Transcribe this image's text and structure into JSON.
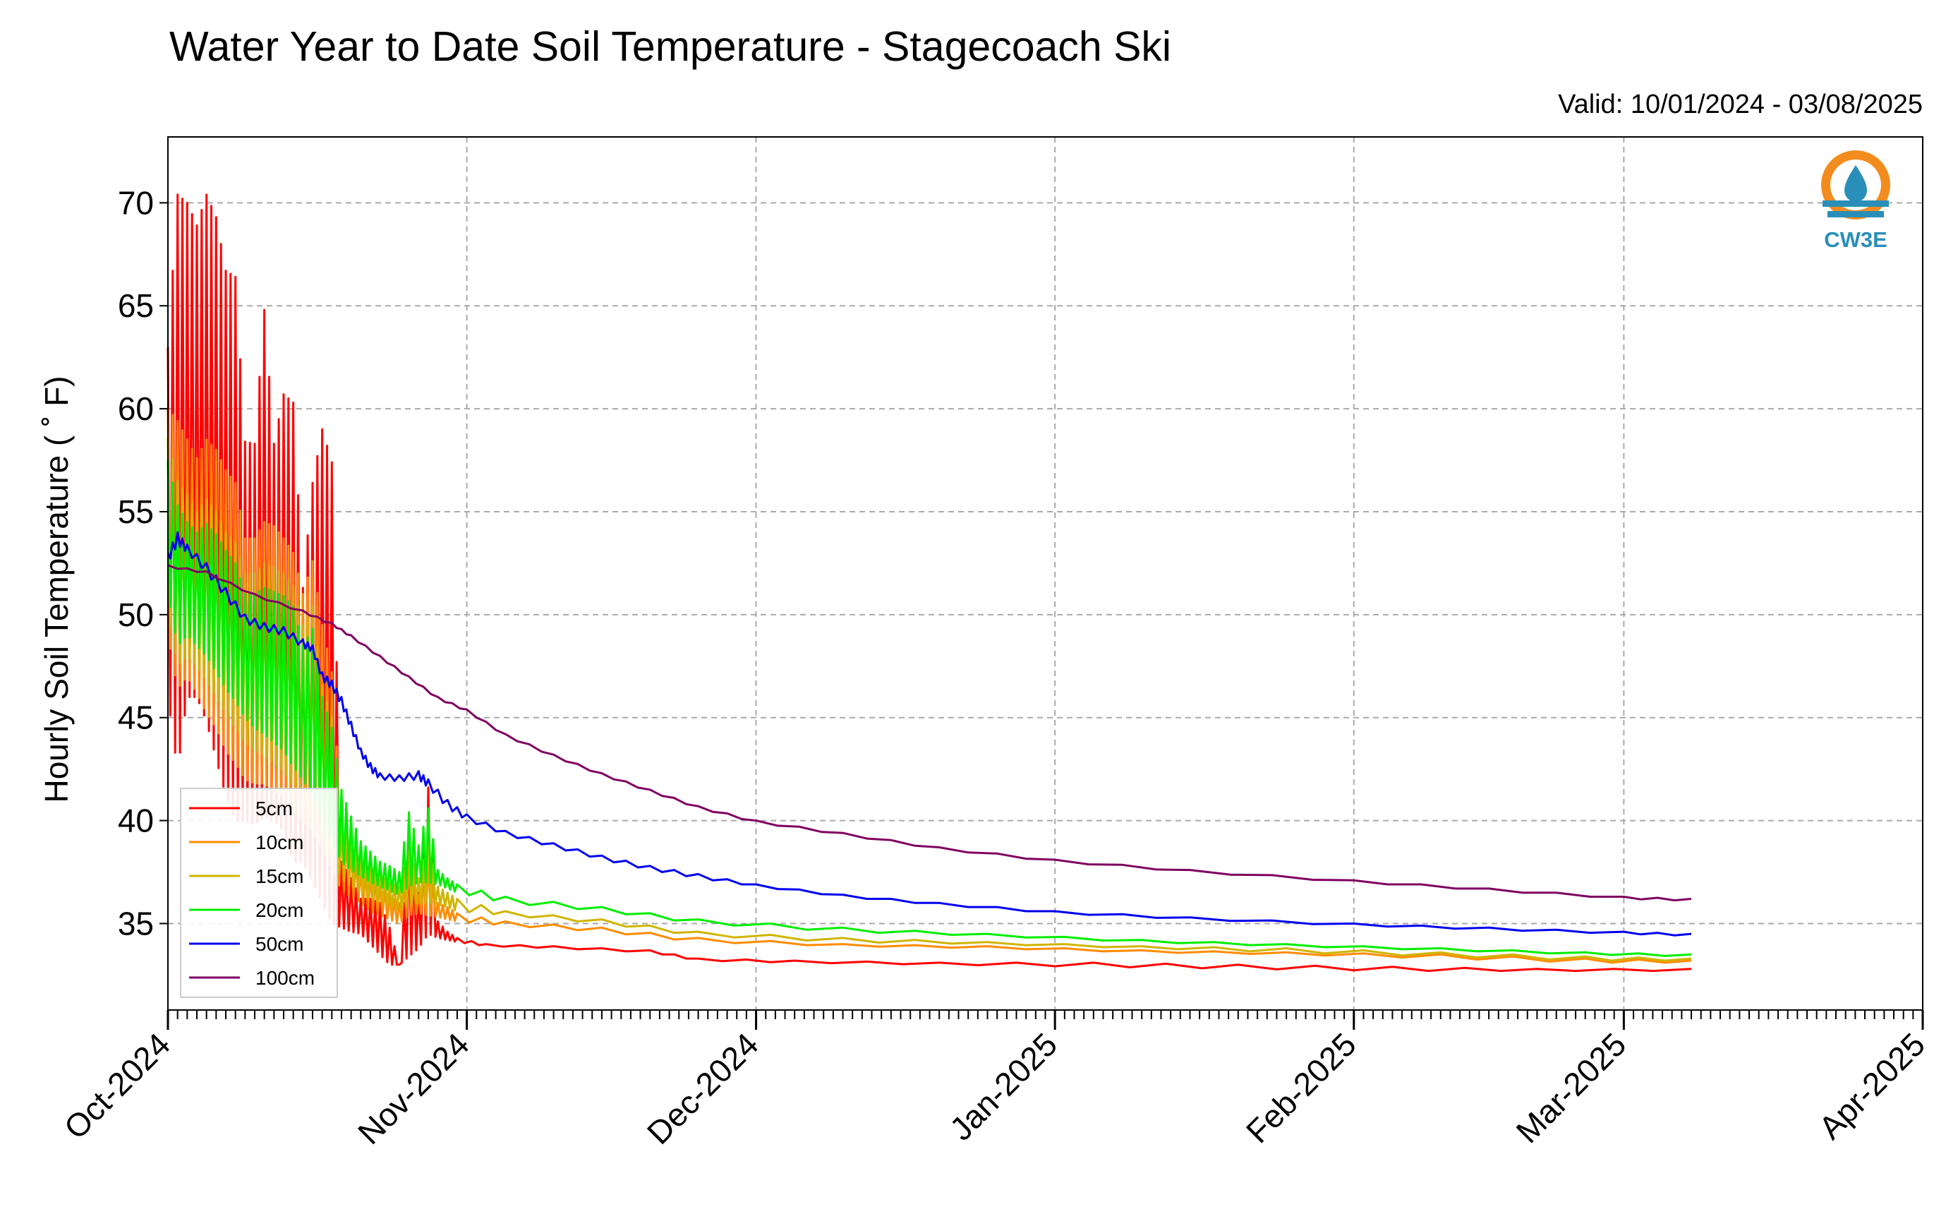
{
  "chart_data": {
    "type": "line",
    "title": "Water Year to Date Soil Temperature - Stagecoach Ski",
    "subtitle": "Valid: 10/01/2024 - 03/08/2025",
    "xlabel": "",
    "ylabel": "Hourly Soil Temperature ( ˚ F)",
    "xlim": [
      "2024-10-01",
      "2025-04-01"
    ],
    "ylim": [
      30.8,
      73.2
    ],
    "x_ticks": [
      "Oct-2024",
      "Nov-2024",
      "Dec-2024",
      "Jan-2025",
      "Feb-2025",
      "Mar-2025",
      "Apr-2025"
    ],
    "y_ticks": [
      35,
      40,
      45,
      50,
      55,
      60,
      65,
      70
    ],
    "grid": true,
    "legend_position": "lower-left",
    "logo_text": "CW3E",
    "series": [
      {
        "name": "5cm",
        "color": "#ff0000",
        "x": [
          "2024-10-01",
          "2024-10-02",
          "2024-10-03",
          "2024-10-04",
          "2024-10-05",
          "2024-10-06",
          "2024-10-07",
          "2024-10-08",
          "2024-10-09",
          "2024-10-10",
          "2024-10-11",
          "2024-10-12",
          "2024-10-13",
          "2024-10-14",
          "2024-10-15",
          "2024-10-16",
          "2024-10-17",
          "2024-10-18",
          "2024-10-19",
          "2024-10-20",
          "2024-10-21",
          "2024-10-22",
          "2024-10-23",
          "2024-10-24",
          "2024-10-25",
          "2024-10-26",
          "2024-10-27",
          "2024-10-28",
          "2024-10-29",
          "2024-10-30",
          "2024-10-31",
          "2024-11-03",
          "2024-11-10",
          "2024-11-20",
          "2024-11-25",
          "2024-12-05",
          "2024-12-20",
          "2025-01-05",
          "2025-01-20",
          "2025-02-05",
          "2025-02-20",
          "2025-03-08"
        ],
        "y": [
          63.0,
          70.4,
          70.0,
          68.9,
          70.4,
          69.3,
          66.7,
          66.4,
          58.4,
          58.3,
          64.8,
          58.3,
          60.7,
          60.3,
          51.3,
          56.4,
          59.0,
          57.4,
          38.0,
          37.2,
          36.2,
          36.2,
          36.0,
          34.8,
          33.0,
          39.0,
          36.5,
          41.6,
          35.1,
          34.6,
          34.3,
          34.0,
          33.9,
          33.7,
          33.3,
          33.2,
          33.1,
          33.1,
          33.0,
          32.9,
          32.8,
          32.8
        ],
        "y_low": [
          46.0,
          42.4,
          46.0,
          46.0,
          44.8,
          43.0,
          41.2,
          40.0,
          40.0,
          39.8,
          40.2,
          40.0,
          39.5,
          38.0,
          38.0,
          37.0,
          36.0,
          35.0,
          34.8,
          34.6,
          34.5,
          34.0,
          33.5,
          33.0,
          33.0,
          33.4,
          33.8,
          34.5,
          34.3,
          34.2,
          34.1,
          33.9,
          33.8,
          33.6,
          33.2,
          33.1,
          33.0,
          32.9,
          32.8,
          32.7,
          32.7,
          32.7
        ]
      },
      {
        "name": "10cm",
        "color": "#ff8c00",
        "x": [
          "2024-10-01",
          "2024-10-02",
          "2024-10-03",
          "2024-10-04",
          "2024-10-05",
          "2024-10-06",
          "2024-10-07",
          "2024-10-08",
          "2024-10-09",
          "2024-10-10",
          "2024-10-11",
          "2024-10-12",
          "2024-10-13",
          "2024-10-14",
          "2024-10-15",
          "2024-10-16",
          "2024-10-17",
          "2024-10-18",
          "2024-10-19",
          "2024-10-20",
          "2024-10-21",
          "2024-10-22",
          "2024-10-23",
          "2024-10-24",
          "2024-10-25",
          "2024-10-26",
          "2024-10-27",
          "2024-10-28",
          "2024-10-29",
          "2024-10-30",
          "2024-10-31",
          "2024-11-05",
          "2024-11-15",
          "2024-11-25",
          "2024-12-10",
          "2024-12-25",
          "2025-01-10",
          "2025-01-25",
          "2025-02-10",
          "2025-02-25",
          "2025-03-08"
        ],
        "y": [
          60.0,
          59.4,
          58.5,
          57.6,
          58.5,
          58.0,
          57.0,
          56.4,
          53.7,
          53.7,
          54.5,
          54.3,
          53.7,
          53.0,
          51.0,
          52.6,
          49.5,
          47.2,
          40.0,
          38.8,
          37.6,
          37.4,
          37.0,
          36.4,
          36.0,
          38.1,
          36.4,
          38.0,
          36.0,
          35.8,
          35.5,
          35.1,
          34.8,
          34.3,
          34.0,
          33.9,
          33.7,
          33.6,
          33.5,
          33.3,
          33.2
        ],
        "y_low": [
          49.0,
          46.4,
          47.0,
          46.2,
          45.2,
          44.5,
          43.4,
          42.8,
          42.0,
          41.8,
          41.8,
          41.4,
          41.2,
          40.4,
          40.0,
          39.4,
          38.6,
          37.6,
          36.6,
          36.3,
          36.0,
          35.6,
          35.4,
          35.2,
          35.0,
          35.4,
          35.5,
          35.4,
          35.3,
          35.2,
          35.1,
          34.9,
          34.6,
          34.1,
          33.9,
          33.8,
          33.6,
          33.5,
          33.3,
          33.1,
          33.1
        ]
      },
      {
        "name": "15cm",
        "color": "#cfb500",
        "x": [
          "2024-10-01",
          "2024-10-02",
          "2024-10-03",
          "2024-10-04",
          "2024-10-05",
          "2024-10-06",
          "2024-10-07",
          "2024-10-08",
          "2024-10-09",
          "2024-10-10",
          "2024-10-11",
          "2024-10-12",
          "2024-10-13",
          "2024-10-14",
          "2024-10-15",
          "2024-10-16",
          "2024-10-17",
          "2024-10-18",
          "2024-10-19",
          "2024-10-20",
          "2024-10-21",
          "2024-10-22",
          "2024-10-23",
          "2024-10-24",
          "2024-10-25",
          "2024-10-26",
          "2024-10-27",
          "2024-10-28",
          "2024-10-29",
          "2024-10-30",
          "2024-10-31",
          "2024-11-05",
          "2024-11-15",
          "2024-11-25",
          "2024-12-10",
          "2024-12-25",
          "2025-01-10",
          "2025-01-25",
          "2025-02-10",
          "2025-02-25",
          "2025-03-08"
        ],
        "y": [
          58.6,
          56.5,
          55.8,
          55.0,
          55.6,
          55.0,
          54.0,
          53.5,
          52.0,
          52.0,
          52.5,
          52.3,
          52.0,
          51.4,
          49.5,
          50.4,
          46.5,
          45.0,
          40.8,
          39.4,
          38.2,
          37.8,
          37.4,
          37.0,
          36.8,
          38.6,
          37.2,
          39.0,
          36.8,
          36.5,
          36.2,
          35.6,
          35.2,
          34.6,
          34.3,
          34.1,
          33.9,
          33.8,
          33.6,
          33.4,
          33.3
        ],
        "y_low": [
          50.0,
          47.5,
          48.0,
          47.5,
          46.8,
          46.0,
          45.2,
          44.5,
          43.8,
          43.4,
          43.2,
          42.8,
          42.4,
          41.6,
          41.0,
          40.2,
          39.2,
          38.2,
          37.2,
          36.8,
          36.5,
          36.2,
          36.0,
          35.8,
          35.6,
          35.9,
          36.0,
          36.0,
          35.9,
          35.8,
          35.6,
          35.4,
          35.0,
          34.4,
          34.1,
          34.0,
          33.8,
          33.6,
          33.4,
          33.2,
          33.2
        ]
      },
      {
        "name": "20cm",
        "color": "#00ee00",
        "x": [
          "2024-10-01",
          "2024-10-02",
          "2024-10-03",
          "2024-10-04",
          "2024-10-05",
          "2024-10-06",
          "2024-10-07",
          "2024-10-08",
          "2024-10-09",
          "2024-10-10",
          "2024-10-11",
          "2024-10-12",
          "2024-10-13",
          "2024-10-14",
          "2024-10-15",
          "2024-10-16",
          "2024-10-17",
          "2024-10-18",
          "2024-10-19",
          "2024-10-20",
          "2024-10-21",
          "2024-10-22",
          "2024-10-23",
          "2024-10-24",
          "2024-10-25",
          "2024-10-26",
          "2024-10-27",
          "2024-10-28",
          "2024-10-29",
          "2024-10-30",
          "2024-10-31",
          "2024-11-05",
          "2024-11-15",
          "2024-11-25",
          "2024-12-10",
          "2024-12-25",
          "2025-01-10",
          "2025-01-25",
          "2025-02-10",
          "2025-02-25",
          "2025-03-08"
        ],
        "y": [
          57.5,
          55.3,
          54.5,
          54.0,
          54.4,
          53.9,
          53.1,
          52.5,
          51.0,
          51.0,
          51.3,
          51.1,
          50.9,
          50.4,
          48.5,
          49.3,
          46.0,
          44.5,
          41.5,
          40.2,
          39.0,
          38.5,
          38.0,
          37.8,
          37.5,
          40.4,
          38.8,
          40.6,
          37.6,
          37.2,
          36.9,
          36.3,
          35.8,
          35.2,
          34.8,
          34.5,
          34.2,
          34.0,
          33.8,
          33.6,
          33.5
        ],
        "y_low": [
          51.0,
          48.5,
          49.0,
          48.5,
          48.0,
          47.2,
          46.4,
          45.8,
          45.0,
          44.5,
          44.2,
          43.8,
          43.4,
          42.6,
          42.0,
          41.2,
          40.0,
          39.0,
          38.0,
          37.6,
          37.3,
          37.0,
          36.8,
          36.6,
          36.4,
          36.8,
          37.0,
          37.0,
          36.9,
          36.7,
          36.5,
          36.0,
          35.6,
          35.0,
          34.6,
          34.4,
          34.1,
          33.9,
          33.7,
          33.5,
          33.4
        ]
      },
      {
        "name": "50cm",
        "color": "#0000ee",
        "x": [
          "2024-10-01",
          "2024-10-02",
          "2024-10-03",
          "2024-10-05",
          "2024-10-07",
          "2024-10-09",
          "2024-10-11",
          "2024-10-13",
          "2024-10-15",
          "2024-10-16",
          "2024-10-17",
          "2024-10-18",
          "2024-10-19",
          "2024-10-20",
          "2024-10-21",
          "2024-10-22",
          "2024-10-23",
          "2024-10-25",
          "2024-10-27",
          "2024-10-28",
          "2024-10-30",
          "2024-11-01",
          "2024-11-05",
          "2024-11-10",
          "2024-11-15",
          "2024-11-20",
          "2024-11-25",
          "2024-12-01",
          "2024-12-10",
          "2024-12-20",
          "2025-01-01",
          "2025-01-15",
          "2025-02-01",
          "2025-02-15",
          "2025-03-01",
          "2025-03-08"
        ],
        "y": [
          53.0,
          54.0,
          53.4,
          52.5,
          51.3,
          50.0,
          49.6,
          49.4,
          48.8,
          48.5,
          47.2,
          46.8,
          46.0,
          44.8,
          43.5,
          42.8,
          42.3,
          42.2,
          42.4,
          42.0,
          41.0,
          40.3,
          39.5,
          38.9,
          38.3,
          37.8,
          37.4,
          36.9,
          36.4,
          36.0,
          35.6,
          35.3,
          35.0,
          34.8,
          34.6,
          34.5
        ],
        "y_low": [
          52.5,
          53.4,
          53.0,
          52.0,
          50.8,
          49.6,
          49.2,
          49.0,
          48.4,
          48.2,
          46.8,
          46.4,
          45.6,
          44.4,
          43.2,
          42.4,
          42.0,
          41.9,
          42.0,
          41.6,
          40.6,
          40.0,
          39.3,
          38.7,
          38.1,
          37.6,
          37.2,
          36.8,
          36.3,
          35.9,
          35.5,
          35.2,
          34.9,
          34.7,
          34.5,
          34.4
        ]
      },
      {
        "name": "100cm",
        "color": "#800060",
        "x": [
          "2024-10-01",
          "2024-10-05",
          "2024-10-10",
          "2024-10-15",
          "2024-10-18",
          "2024-10-20",
          "2024-10-23",
          "2024-10-26",
          "2024-10-29",
          "2024-11-01",
          "2024-11-05",
          "2024-11-10",
          "2024-11-15",
          "2024-11-20",
          "2024-11-25",
          "2024-12-01",
          "2024-12-10",
          "2024-12-20",
          "2025-01-01",
          "2025-01-15",
          "2025-02-01",
          "2025-02-15",
          "2025-03-01",
          "2025-03-08"
        ],
        "y": [
          52.4,
          52.1,
          51.0,
          50.2,
          49.6,
          49.0,
          48.0,
          47.0,
          46.0,
          45.4,
          44.2,
          43.2,
          42.3,
          41.5,
          40.7,
          40.0,
          39.4,
          38.7,
          38.1,
          37.6,
          37.1,
          36.7,
          36.3,
          36.2
        ],
        "y_low": [
          52.3,
          52.0,
          50.9,
          50.1,
          49.5,
          48.9,
          47.9,
          46.9,
          45.9,
          45.3,
          44.1,
          43.1,
          42.2,
          41.4,
          40.6,
          39.9,
          39.3,
          38.6,
          38.0,
          37.5,
          37.0,
          36.6,
          36.2,
          36.1
        ]
      }
    ]
  }
}
